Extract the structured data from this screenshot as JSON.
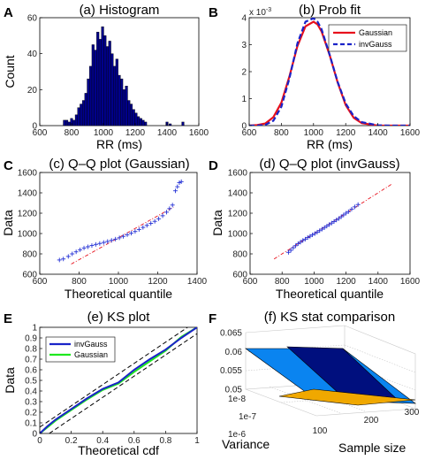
{
  "chart_data": [
    {
      "panel": "A",
      "type": "bar",
      "title": "(a) Histogram",
      "xlabel": "RR (ms)",
      "ylabel": "Count",
      "xlim": [
        600,
        1600
      ],
      "ylim": [
        0,
        60
      ],
      "xticks": [
        600,
        800,
        1000,
        1200,
        1400,
        1600
      ],
      "yticks": [
        0,
        20,
        40,
        60
      ],
      "bin_width": 15,
      "bar_color": "#00008b",
      "bins": [
        {
          "x": 755,
          "y": 3
        },
        {
          "x": 770,
          "y": 3
        },
        {
          "x": 785,
          "y": 2
        },
        {
          "x": 800,
          "y": 4
        },
        {
          "x": 815,
          "y": 3
        },
        {
          "x": 830,
          "y": 6
        },
        {
          "x": 845,
          "y": 10
        },
        {
          "x": 860,
          "y": 12
        },
        {
          "x": 875,
          "y": 14
        },
        {
          "x": 890,
          "y": 18
        },
        {
          "x": 905,
          "y": 26
        },
        {
          "x": 920,
          "y": 33
        },
        {
          "x": 935,
          "y": 45
        },
        {
          "x": 950,
          "y": 42
        },
        {
          "x": 965,
          "y": 52
        },
        {
          "x": 980,
          "y": 48
        },
        {
          "x": 995,
          "y": 55
        },
        {
          "x": 1010,
          "y": 50
        },
        {
          "x": 1025,
          "y": 44
        },
        {
          "x": 1040,
          "y": 47
        },
        {
          "x": 1055,
          "y": 40
        },
        {
          "x": 1070,
          "y": 33
        },
        {
          "x": 1085,
          "y": 37
        },
        {
          "x": 1100,
          "y": 28
        },
        {
          "x": 1115,
          "y": 26
        },
        {
          "x": 1130,
          "y": 20
        },
        {
          "x": 1145,
          "y": 22
        },
        {
          "x": 1160,
          "y": 14
        },
        {
          "x": 1175,
          "y": 12
        },
        {
          "x": 1190,
          "y": 9
        },
        {
          "x": 1205,
          "y": 7
        },
        {
          "x": 1220,
          "y": 5
        },
        {
          "x": 1235,
          "y": 4
        },
        {
          "x": 1250,
          "y": 3
        },
        {
          "x": 1265,
          "y": 2
        },
        {
          "x": 1400,
          "y": 2
        },
        {
          "x": 1420,
          "y": 1
        },
        {
          "x": 1500,
          "y": 2
        }
      ]
    },
    {
      "panel": "B",
      "type": "line",
      "title": "(b) Prob fit",
      "xlabel": "RR (ms)",
      "ylabel": "",
      "xlim": [
        600,
        1600
      ],
      "ylim": [
        0,
        0.004
      ],
      "xticks": [
        600,
        800,
        1000,
        1200,
        1400,
        1600
      ],
      "yticks": [
        0,
        1,
        2,
        3,
        4
      ],
      "exponent_label": "x 10",
      "exponent_power": "-3",
      "legend_position": "top-right",
      "series": [
        {
          "name": "Gaussian",
          "color": "#e8101c",
          "dash": "solid",
          "x": [
            600,
            650,
            700,
            750,
            800,
            850,
            900,
            950,
            1000,
            1025,
            1050,
            1100,
            1150,
            1200,
            1250,
            1300,
            1400,
            1500,
            1600
          ],
          "y": [
            0.0,
            2e-05,
            8e-05,
            0.00031,
            0.00085,
            0.00182,
            0.00295,
            0.00368,
            0.00385,
            0.00375,
            0.00349,
            0.00262,
            0.0016,
            0.00076,
            0.00029,
            9e-05,
            0.0,
            0.0,
            0.0
          ]
        },
        {
          "name": "invGauss",
          "color": "#1a23c8",
          "dash": "dashed",
          "x": [
            600,
            650,
            700,
            750,
            800,
            850,
            900,
            950,
            1000,
            1025,
            1050,
            1100,
            1150,
            1200,
            1250,
            1300,
            1400,
            1500,
            1600
          ],
          "y": [
            0.0,
            0.0,
            3e-05,
            0.00018,
            0.0007,
            0.00175,
            0.00305,
            0.00385,
            0.00398,
            0.00385,
            0.00357,
            0.00263,
            0.00162,
            0.00082,
            0.00035,
            0.00013,
            1e-05,
            0.0,
            0.0
          ]
        }
      ]
    },
    {
      "panel": "C",
      "type": "scatter",
      "title": "(c) Q–Q plot (Gaussian)",
      "xlabel": "Theoretical quantile",
      "ylabel": "Data",
      "xlim": [
        600,
        1400
      ],
      "ylim": [
        600,
        1600
      ],
      "xticks": [
        600,
        800,
        1000,
        1200,
        1400
      ],
      "yticks": [
        600,
        800,
        1000,
        1200,
        1400,
        1600
      ],
      "marker_color": "#2633d6",
      "ref_line_color": "#e8101c",
      "ref_line": [
        [
          760,
          700
        ],
        [
          1280,
          1260
        ]
      ],
      "points": [
        [
          700,
          740
        ],
        [
          720,
          750
        ],
        [
          745,
          775
        ],
        [
          765,
          800
        ],
        [
          785,
          820
        ],
        [
          805,
          840
        ],
        [
          825,
          858
        ],
        [
          845,
          870
        ],
        [
          865,
          882
        ],
        [
          885,
          893
        ],
        [
          905,
          902
        ],
        [
          925,
          912
        ],
        [
          945,
          922
        ],
        [
          965,
          933
        ],
        [
          985,
          945
        ],
        [
          1005,
          958
        ],
        [
          1025,
          972
        ],
        [
          1045,
          988
        ],
        [
          1065,
          1003
        ],
        [
          1085,
          1020
        ],
        [
          1105,
          1040
        ],
        [
          1125,
          1060
        ],
        [
          1145,
          1080
        ],
        [
          1165,
          1100
        ],
        [
          1185,
          1120
        ],
        [
          1205,
          1145
        ],
        [
          1225,
          1175
        ],
        [
          1245,
          1210
        ],
        [
          1260,
          1245
        ],
        [
          1275,
          1280
        ],
        [
          1290,
          1420
        ],
        [
          1300,
          1460
        ],
        [
          1310,
          1500
        ],
        [
          1320,
          1510
        ]
      ]
    },
    {
      "panel": "D",
      "type": "scatter",
      "title": "(d) Q–Q plot (invGauss)",
      "xlabel": "Theoretical quantile",
      "ylabel": "Data",
      "xlim": [
        600,
        1600
      ],
      "ylim": [
        600,
        1600
      ],
      "xticks": [
        600,
        800,
        1000,
        1200,
        1400,
        1600
      ],
      "yticks": [
        600,
        800,
        1000,
        1200,
        1400,
        1600
      ],
      "marker_color": "#2633d6",
      "ref_line_color": "#e8101c",
      "ref_line": [
        [
          750,
          750
        ],
        [
          1490,
          1490
        ]
      ],
      "points": [
        [
          840,
          815
        ],
        [
          855,
          835
        ],
        [
          870,
          860
        ],
        [
          885,
          880
        ],
        [
          900,
          900
        ],
        [
          915,
          915
        ],
        [
          930,
          932
        ],
        [
          945,
          945
        ],
        [
          960,
          960
        ],
        [
          975,
          973
        ],
        [
          990,
          987
        ],
        [
          1005,
          1000
        ],
        [
          1020,
          1014
        ],
        [
          1035,
          1028
        ],
        [
          1050,
          1043
        ],
        [
          1065,
          1058
        ],
        [
          1080,
          1073
        ],
        [
          1095,
          1088
        ],
        [
          1110,
          1103
        ],
        [
          1125,
          1118
        ],
        [
          1140,
          1133
        ],
        [
          1155,
          1148
        ],
        [
          1170,
          1165
        ],
        [
          1185,
          1183
        ],
        [
          1200,
          1200
        ],
        [
          1215,
          1215
        ],
        [
          1235,
          1240
        ],
        [
          1255,
          1262
        ],
        [
          1275,
          1285
        ]
      ]
    },
    {
      "panel": "E",
      "type": "line",
      "title": "(e) KS plot",
      "xlabel": "Theoretical cdf",
      "ylabel": "Data",
      "xlim": [
        0,
        1
      ],
      "ylim": [
        0,
        1
      ],
      "xticks": [
        0,
        0.2,
        0.4,
        0.6,
        0.8,
        1
      ],
      "yticks": [
        0,
        0.1,
        0.2,
        0.3,
        0.4,
        0.5,
        0.6,
        0.7,
        0.8,
        0.9,
        1
      ],
      "legend_position": "top-left",
      "confidence_band_color": "#000000",
      "confidence_band_offset": 0.06,
      "series": [
        {
          "name": "invGauss",
          "color": "#1a23c8",
          "x": [
            0,
            0.05,
            0.1,
            0.2,
            0.3,
            0.4,
            0.5,
            0.6,
            0.7,
            0.8,
            0.9,
            1
          ],
          "y": [
            0,
            0.07,
            0.13,
            0.23,
            0.33,
            0.42,
            0.48,
            0.6,
            0.7,
            0.79,
            0.9,
            1
          ]
        },
        {
          "name": "Gaussian",
          "color": "#1ee81e",
          "x": [
            0,
            0.05,
            0.1,
            0.2,
            0.3,
            0.4,
            0.5,
            0.6,
            0.7,
            0.8,
            0.9,
            1
          ],
          "y": [
            0,
            0.06,
            0.12,
            0.22,
            0.32,
            0.41,
            0.47,
            0.58,
            0.68,
            0.78,
            0.91,
            1
          ]
        }
      ]
    },
    {
      "panel": "F",
      "type": "surface",
      "title": "(f) KS stat comparison",
      "xlabel": "Variance",
      "ylabel": "Sample size",
      "zlim": [
        0.05,
        0.065
      ],
      "zticks": [
        0.05,
        0.055,
        0.06,
        0.065
      ],
      "variance_ticks": [
        "1e-8",
        "1e-7",
        "1e-6"
      ],
      "sample_size_ticks": [
        100,
        200,
        300
      ],
      "colors": {
        "high": "#000f7e",
        "mid": "#0a84f0",
        "low": "#f0a800"
      }
    }
  ]
}
